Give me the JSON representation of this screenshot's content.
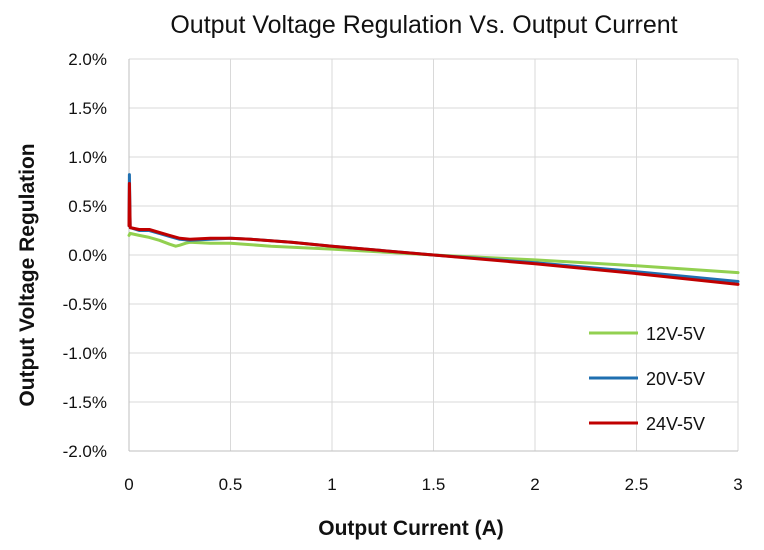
{
  "chart_data": {
    "type": "line",
    "title": "Output Voltage Regulation Vs. Output Current",
    "xlabel": "Output Current (A)",
    "ylabel": "Output Voltage Regulation",
    "xlim": [
      0,
      3
    ],
    "ylim": [
      -2.0,
      2.0
    ],
    "xticks": [
      0,
      0.5,
      1,
      1.5,
      2,
      2.5,
      3
    ],
    "xtick_labels": [
      "0",
      "0.5",
      "1",
      "1.5",
      "2",
      "2.5",
      "3"
    ],
    "yticks": [
      2.0,
      1.5,
      1.0,
      0.5,
      0.0,
      -0.5,
      -1.0,
      -1.5,
      -2.0
    ],
    "ytick_labels": [
      "2.0%",
      "1.5%",
      "1.0%",
      "0.5%",
      "0.0%",
      "-0.5%",
      "-1.0%",
      "-1.5%",
      "-2.0%"
    ],
    "grid": true,
    "legend_position": "bottom-right",
    "series": [
      {
        "name": "12V-5V",
        "color": "#92d050",
        "x": [
          0,
          0.005,
          0.05,
          0.1,
          0.15,
          0.2,
          0.23,
          0.25,
          0.28,
          0.3,
          0.4,
          0.5,
          0.7,
          1.0,
          1.5,
          2.0,
          2.5,
          3.0
        ],
        "values": [
          0.2,
          0.22,
          0.2,
          0.18,
          0.15,
          0.11,
          0.09,
          0.1,
          0.12,
          0.13,
          0.12,
          0.12,
          0.09,
          0.06,
          0.0,
          -0.05,
          -0.11,
          -0.18
        ]
      },
      {
        "name": "20V-5V",
        "color": "#1f6fb0",
        "x": [
          0,
          0.002,
          0.006,
          0.05,
          0.1,
          0.15,
          0.2,
          0.25,
          0.3,
          0.4,
          0.5,
          0.6,
          0.8,
          1.0,
          1.5,
          2.0,
          2.5,
          3.0
        ],
        "values": [
          0.3,
          0.82,
          0.28,
          0.25,
          0.25,
          0.22,
          0.19,
          0.16,
          0.15,
          0.16,
          0.17,
          0.16,
          0.13,
          0.09,
          0.0,
          -0.08,
          -0.17,
          -0.27
        ]
      },
      {
        "name": "24V-5V",
        "color": "#c00000",
        "x": [
          0,
          0.002,
          0.006,
          0.05,
          0.1,
          0.15,
          0.2,
          0.25,
          0.3,
          0.4,
          0.5,
          0.6,
          0.8,
          1.0,
          1.5,
          2.0,
          2.5,
          3.0
        ],
        "values": [
          0.3,
          0.73,
          0.28,
          0.26,
          0.26,
          0.23,
          0.2,
          0.17,
          0.16,
          0.17,
          0.17,
          0.16,
          0.13,
          0.09,
          0.0,
          -0.09,
          -0.19,
          -0.3
        ]
      }
    ]
  }
}
